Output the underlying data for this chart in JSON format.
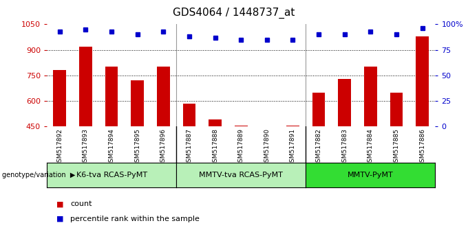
{
  "title": "GDS4064 / 1448737_at",
  "samples": [
    "GSM517892",
    "GSM517893",
    "GSM517894",
    "GSM517895",
    "GSM517896",
    "GSM517887",
    "GSM517888",
    "GSM517889",
    "GSM517890",
    "GSM517891",
    "GSM517882",
    "GSM517883",
    "GSM517884",
    "GSM517885",
    "GSM517886"
  ],
  "counts": [
    780,
    920,
    800,
    720,
    800,
    585,
    490,
    455,
    450,
    455,
    650,
    730,
    800,
    650,
    980
  ],
  "percentiles": [
    93,
    95,
    93,
    90,
    93,
    88,
    87,
    85,
    85,
    85,
    90,
    90,
    93,
    90,
    96
  ],
  "groups": [
    {
      "label": "K6-tva RCAS-PyMT",
      "start": 0,
      "end": 5,
      "color": "#b8f0b8"
    },
    {
      "label": "MMTV-tva RCAS-PyMT",
      "start": 5,
      "end": 10,
      "color": "#b8f0b8"
    },
    {
      "label": "MMTV-PyMT",
      "start": 10,
      "end": 15,
      "color": "#33dd33"
    }
  ],
  "ylim_left": [
    450,
    1050
  ],
  "ylim_right": [
    0,
    100
  ],
  "yticks_left": [
    450,
    600,
    750,
    900,
    1050
  ],
  "yticks_right": [
    0,
    25,
    50,
    75,
    100
  ],
  "bar_color": "#CC0000",
  "dot_color": "#0000CC",
  "plot_bg": "#ffffff",
  "tick_bg": "#C8C8C8",
  "group_label_prefix": "genotype/variation",
  "legend_count": "count",
  "legend_percentile": "percentile rank within the sample",
  "grid_lines": [
    600,
    750,
    900
  ]
}
